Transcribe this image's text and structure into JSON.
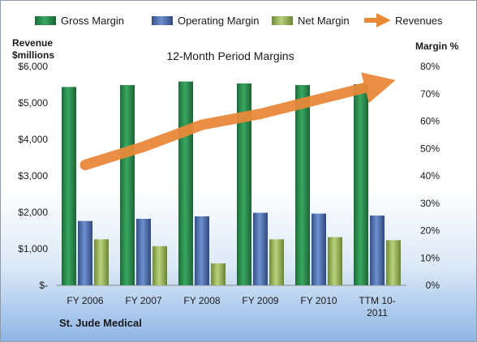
{
  "chart_data": {
    "type": "bar",
    "title": "12-Month Period Margins",
    "company": "St. Jude Medical",
    "categories": [
      "FY 2006",
      "FY 2007",
      "FY 2008",
      "FY 2009",
      "FY 2010",
      "TTM 10-2011"
    ],
    "category_lines": [
      [
        "FY 2006"
      ],
      [
        "FY 2007"
      ],
      [
        "FY 2008"
      ],
      [
        "FY 2009"
      ],
      [
        "FY 2010"
      ],
      [
        "TTM 10-",
        "2011"
      ]
    ],
    "left_axis": {
      "label_lines": [
        "Revenue",
        "$millions"
      ],
      "ylim": [
        0,
        6000
      ],
      "ticks": [
        0,
        1000,
        2000,
        3000,
        4000,
        5000,
        6000
      ],
      "tick_labels": [
        "$-",
        "$1,000",
        "$2,000",
        "$3,000",
        "$4,000",
        "$5,000",
        "$6,000"
      ]
    },
    "right_axis": {
      "label": "Margin %",
      "ylim": [
        0,
        80
      ],
      "ticks": [
        0,
        10,
        20,
        30,
        40,
        50,
        60,
        70,
        80
      ],
      "tick_labels": [
        "0%",
        "10%",
        "20%",
        "30%",
        "40%",
        "50%",
        "60%",
        "70%",
        "80%"
      ]
    },
    "series": [
      {
        "name": "Gross Margin",
        "axis": "right",
        "kind": "bar",
        "color": "#2e8b4e",
        "values": [
          72.5,
          73.2,
          74.5,
          73.8,
          73.2,
          73.5
        ]
      },
      {
        "name": "Operating Margin",
        "axis": "right",
        "kind": "bar",
        "color": "#4a6fb0",
        "values": [
          23.5,
          24.3,
          25.2,
          26.5,
          26.2,
          25.5
        ]
      },
      {
        "name": "Net Margin",
        "axis": "right",
        "kind": "bar",
        "color": "#9bbb59",
        "values": [
          16.8,
          14.3,
          8.0,
          16.8,
          17.6,
          16.5
        ]
      },
      {
        "name": "Revenues",
        "axis": "left",
        "kind": "line",
        "color": "#e8893a",
        "values": [
          3300,
          3800,
          4400,
          4700,
          5100,
          5500
        ]
      }
    ],
    "legend_position": "top",
    "grid": false
  }
}
